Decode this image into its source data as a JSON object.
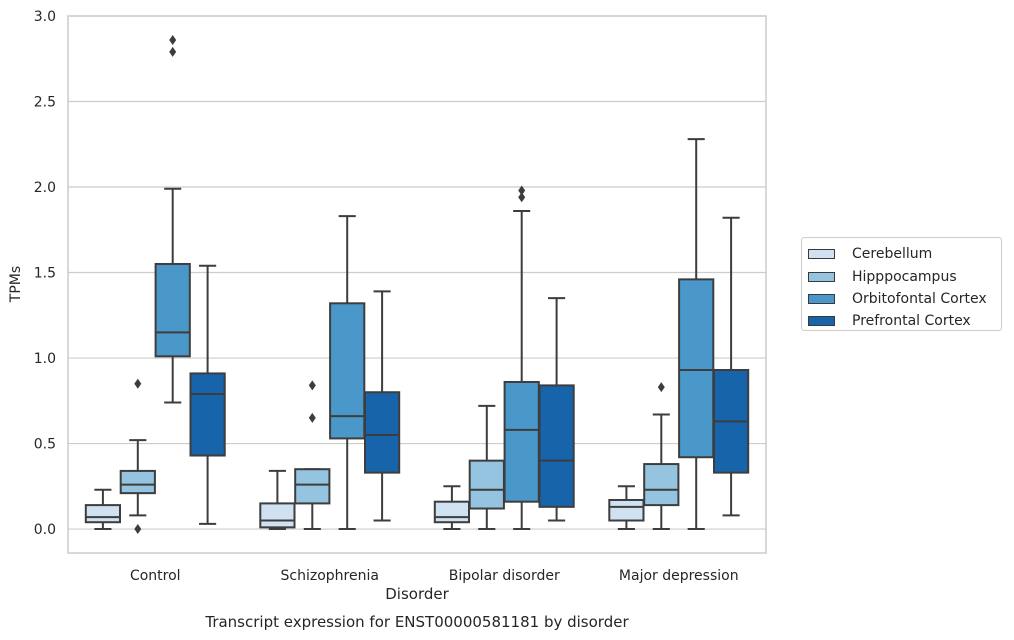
{
  "chart_data": {
    "type": "box",
    "title": "Transcript expression for ENST00000581181 by disorder",
    "xlabel": "Disorder",
    "ylabel": "TPMs",
    "ylim": [
      -0.14,
      3.0
    ],
    "yticks": [
      "0.0",
      "0.5",
      "1.0",
      "1.5",
      "2.0",
      "2.5",
      "3.0"
    ],
    "categories": [
      "Control",
      "Schizophrenia",
      "Bipolar disorder",
      "Major depression"
    ],
    "grid": "horizontal",
    "legend_position": "right",
    "series": [
      {
        "name": "Cerebellum",
        "color": "#d0e1f2",
        "boxes": [
          {
            "whisker_low": 0.0,
            "q1": 0.04,
            "median": 0.07,
            "q3": 0.14,
            "whisker_high": 0.23,
            "outliers": []
          },
          {
            "whisker_low": 0.0,
            "q1": 0.01,
            "median": 0.05,
            "q3": 0.15,
            "whisker_high": 0.34,
            "outliers": []
          },
          {
            "whisker_low": 0.0,
            "q1": 0.04,
            "median": 0.07,
            "q3": 0.16,
            "whisker_high": 0.25,
            "outliers": []
          },
          {
            "whisker_low": 0.0,
            "q1": 0.05,
            "median": 0.13,
            "q3": 0.17,
            "whisker_high": 0.25,
            "outliers": []
          }
        ]
      },
      {
        "name": "Hipppocampus",
        "color": "#94c4df",
        "boxes": [
          {
            "whisker_low": 0.08,
            "q1": 0.21,
            "median": 0.26,
            "q3": 0.34,
            "whisker_high": 0.52,
            "outliers": [
              0.85,
              0.0
            ]
          },
          {
            "whisker_low": 0.0,
            "q1": 0.15,
            "median": 0.26,
            "q3": 0.35,
            "whisker_high": 0.35,
            "outliers": [
              0.84,
              0.65
            ]
          },
          {
            "whisker_low": 0.0,
            "q1": 0.12,
            "median": 0.23,
            "q3": 0.4,
            "whisker_high": 0.72,
            "outliers": []
          },
          {
            "whisker_low": 0.0,
            "q1": 0.14,
            "median": 0.23,
            "q3": 0.38,
            "whisker_high": 0.67,
            "outliers": [
              0.83
            ]
          }
        ]
      },
      {
        "name": "Orbitofontal Cortex",
        "color": "#4a98c9",
        "boxes": [
          {
            "whisker_low": 0.74,
            "q1": 1.01,
            "median": 1.15,
            "q3": 1.55,
            "whisker_high": 1.99,
            "outliers": [
              2.86,
              2.79
            ]
          },
          {
            "whisker_low": 0.0,
            "q1": 0.53,
            "median": 0.66,
            "q3": 1.32,
            "whisker_high": 1.83,
            "outliers": []
          },
          {
            "whisker_low": 0.0,
            "q1": 0.16,
            "median": 0.58,
            "q3": 0.86,
            "whisker_high": 1.86,
            "outliers": [
              1.98,
              1.94
            ]
          },
          {
            "whisker_low": 0.0,
            "q1": 0.42,
            "median": 0.93,
            "q3": 1.46,
            "whisker_high": 2.28,
            "outliers": []
          }
        ]
      },
      {
        "name": "Prefrontal Cortex",
        "color": "#1764ab",
        "boxes": [
          {
            "whisker_low": 0.03,
            "q1": 0.43,
            "median": 0.79,
            "q3": 0.91,
            "whisker_high": 1.54,
            "outliers": []
          },
          {
            "whisker_low": 0.05,
            "q1": 0.33,
            "median": 0.55,
            "q3": 0.8,
            "whisker_high": 1.39,
            "outliers": []
          },
          {
            "whisker_low": 0.05,
            "q1": 0.13,
            "median": 0.4,
            "q3": 0.84,
            "whisker_high": 1.35,
            "outliers": []
          },
          {
            "whisker_low": 0.08,
            "q1": 0.33,
            "median": 0.63,
            "q3": 0.93,
            "whisker_high": 1.82,
            "outliers": []
          }
        ]
      }
    ]
  }
}
